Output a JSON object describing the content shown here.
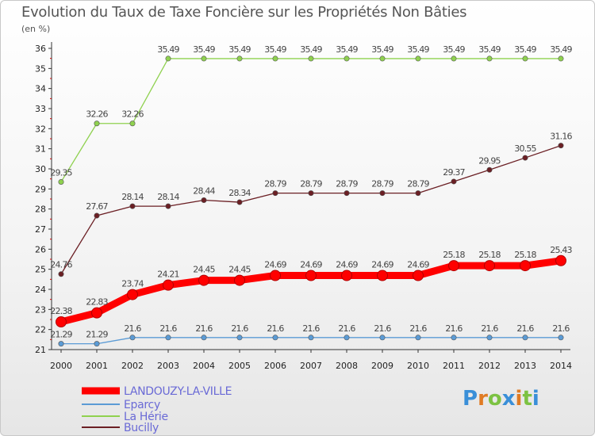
{
  "title": "Evolution du Taux de Taxe Foncière sur les Propriétés Non Bâties",
  "unit": "(en %)",
  "chart_data": {
    "type": "line",
    "title": "Evolution du Taux de Taxe Foncière sur les Propriétés Non Bâties",
    "ylabel": "(en %)",
    "xlabel": "",
    "ylim": [
      21,
      36
    ],
    "yticks": [
      21,
      22,
      23,
      24,
      25,
      26,
      27,
      28,
      29,
      30,
      31,
      32,
      33,
      34,
      35,
      36
    ],
    "categories": [
      "2000",
      "2001",
      "2002",
      "2003",
      "2004",
      "2005",
      "2006",
      "2007",
      "2008",
      "2009",
      "2010",
      "2011",
      "2012",
      "2013",
      "2014"
    ],
    "series": [
      {
        "name": "Eparcy",
        "color": "#5b9bd5",
        "values": [
          21.29,
          21.29,
          21.6,
          21.6,
          21.6,
          21.6,
          21.6,
          21.6,
          21.6,
          21.6,
          21.6,
          21.6,
          21.6,
          21.6,
          21.6
        ],
        "labels": [
          "21.29",
          "21.29",
          "21.6",
          "21.6",
          "21.6",
          "21.6",
          "21.6",
          "21.6",
          "21.6",
          "21.6",
          "21.6",
          "21.6",
          "21.6",
          "21.6",
          "21.6"
        ]
      },
      {
        "name": "La Hérie",
        "color": "#8fd14f",
        "values": [
          29.35,
          32.26,
          32.26,
          35.49,
          35.49,
          35.49,
          35.49,
          35.49,
          35.49,
          35.49,
          35.49,
          35.49,
          35.49,
          35.49,
          35.49
        ],
        "labels": [
          "29.35",
          "32.26",
          "32.26",
          "35.49",
          "35.49",
          "35.49",
          "35.49",
          "35.49",
          "35.49",
          "35.49",
          "35.49",
          "35.49",
          "35.49",
          "35.49",
          "35.49"
        ]
      },
      {
        "name": "Bucilly",
        "color": "#6b1f24",
        "values": [
          24.76,
          27.67,
          28.14,
          28.14,
          28.44,
          28.34,
          28.79,
          28.79,
          28.79,
          28.79,
          28.79,
          29.37,
          29.95,
          30.55,
          31.16
        ],
        "labels": [
          "24.76",
          "27.67",
          "28.14",
          "28.14",
          "28.44",
          "28.34",
          "28.79",
          "28.79",
          "28.79",
          "28.79",
          "28.79",
          "29.37",
          "29.95",
          "30.55",
          "31.16"
        ]
      },
      {
        "name": "LANDOUZY-LA-VILLE",
        "color": "#ff0000",
        "values": [
          22.38,
          22.83,
          23.74,
          24.21,
          24.45,
          24.45,
          24.69,
          24.69,
          24.69,
          24.69,
          24.69,
          25.18,
          25.18,
          25.18,
          25.43
        ],
        "labels": [
          "22.38",
          "22.83",
          "23.74",
          "24.21",
          "24.45",
          "24.45",
          "24.69",
          "24.69",
          "24.69",
          "24.69",
          "24.69",
          "25.18",
          "25.18",
          "25.18",
          "25.43"
        ]
      }
    ],
    "legend": [
      "LANDOUZY-LA-VILLE",
      "Eparcy",
      "La Hérie",
      "Bucilly"
    ],
    "legend_colors": [
      "#ff0000",
      "#5b9bd5",
      "#8fd14f",
      "#6b1f24"
    ],
    "legend_text_color": "#6a6ad6",
    "legend_position": "bottom-left",
    "grid": false
  },
  "logo": {
    "letters": [
      "P",
      "r",
      "o",
      "x",
      "i",
      "t",
      "i"
    ],
    "colors": [
      "#3a8fd8",
      "#e07b24",
      "#7cc242",
      "#3a8fd8",
      "#e07b24",
      "#7cc242",
      "#3a8fd8"
    ]
  }
}
